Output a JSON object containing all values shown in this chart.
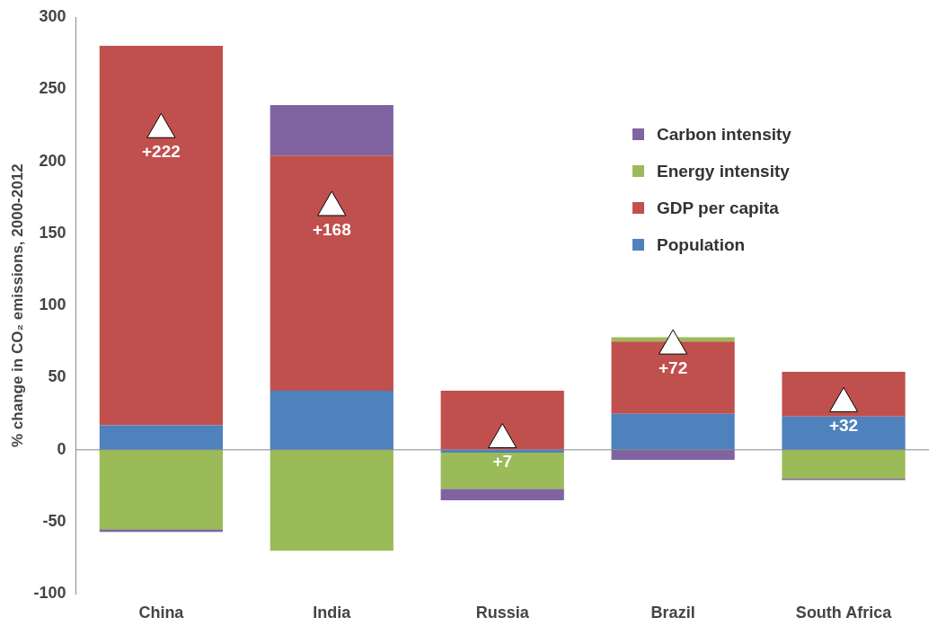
{
  "chart_data": {
    "type": "bar",
    "stacked": true,
    "ylabel": "% change in CO₂ emissions, 2000-2012",
    "categories": [
      "China",
      "India",
      "Russia",
      "Brazil",
      "South Africa"
    ],
    "series": [
      {
        "name": "Population",
        "color": "#4f81bd",
        "values": [
          17,
          41,
          -2,
          25,
          23
        ]
      },
      {
        "name": "GDP per capita",
        "color": "#c0504d",
        "values": [
          263,
          163,
          41,
          50,
          31
        ]
      },
      {
        "name": "Energy intensity",
        "color": "#9bbb59",
        "values": [
          -55,
          -70,
          -25,
          3,
          -20
        ]
      },
      {
        "name": "Carbon intensity",
        "color": "#8064a2",
        "values": [
          -2,
          35,
          -8,
          -7,
          -1
        ]
      },
      {
        "type": "scatter",
        "color": "#ffffff",
        "marker": "triangle",
        "values": [
          222,
          168,
          7,
          72,
          32
        ],
        "value_labels": [
          "+222",
          "+168",
          "+7",
          "+72",
          "+32"
        ]
      }
    ],
    "ylim": [
      -100,
      300
    ],
    "yticks": [
      -100,
      -50,
      0,
      50,
      100,
      150,
      200,
      250,
      300
    ],
    "grid": false,
    "legend": "right",
    "ref_lines": [
      {
        "axis": "y",
        "value": 0,
        "color": "#888888"
      }
    ]
  }
}
